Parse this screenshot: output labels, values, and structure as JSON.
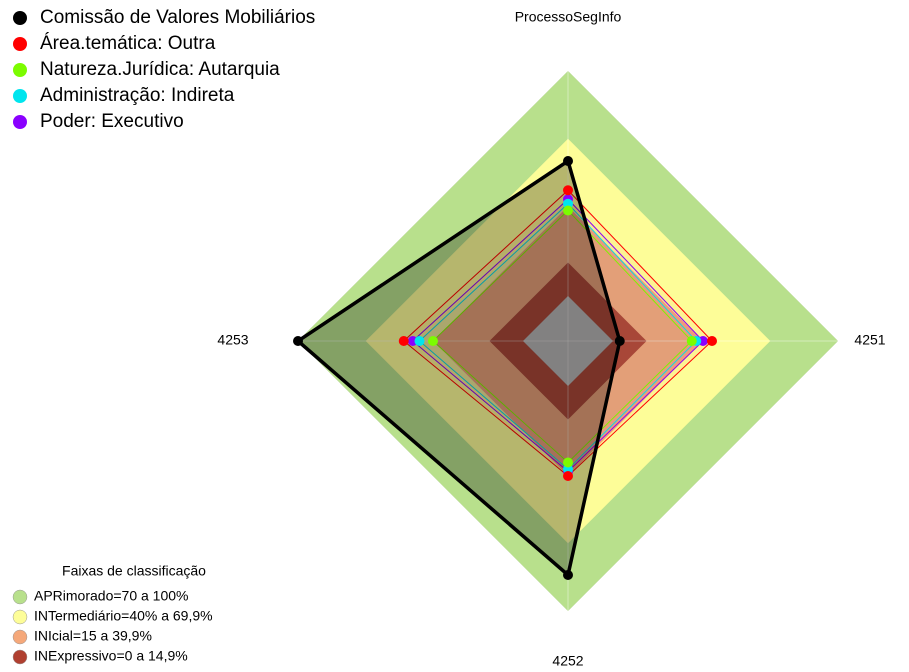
{
  "chart_data": {
    "type": "radar",
    "categories": [
      "ProcessoSegInfo",
      "4251",
      "4252",
      "4253"
    ],
    "rlim": [
      -20,
      100
    ],
    "series": [
      {
        "name": "Comissão de Valores Mobiliários",
        "color": "#000000",
        "values": [
          60,
          3,
          84,
          100
        ]
      },
      {
        "name": "Área.temática: Outra",
        "color": "#ff0000",
        "values": [
          47,
          44,
          40,
          53
        ]
      },
      {
        "name": "Natureza.Jurídica: Autarquia",
        "color": "#7cfc00",
        "values": [
          38,
          35,
          34,
          40
        ]
      },
      {
        "name": "Administração: Indireta",
        "color": "#00e5ee",
        "values": [
          41,
          37,
          37,
          46
        ]
      },
      {
        "name": "Poder: Executivo",
        "color": "#8a00ff",
        "values": [
          43,
          40,
          38,
          49
        ]
      }
    ],
    "bands_title": "Faixas de classificação",
    "bands": [
      {
        "label": "APRimorado=70 a 100%",
        "from": 70,
        "to": 100,
        "color": "#b8e08c"
      },
      {
        "label": "INTermediário=40% a 69,9%",
        "from": 40,
        "to": 69.9,
        "color": "#fdfd98"
      },
      {
        "label": "INIcial=15 a 39,9%",
        "from": 15,
        "to": 39.9,
        "color": "#f5a87a"
      },
      {
        "label": "INExpressivo=0 a 14,9%",
        "from": 0,
        "to": 14.9,
        "color": "#b04030"
      }
    ]
  }
}
